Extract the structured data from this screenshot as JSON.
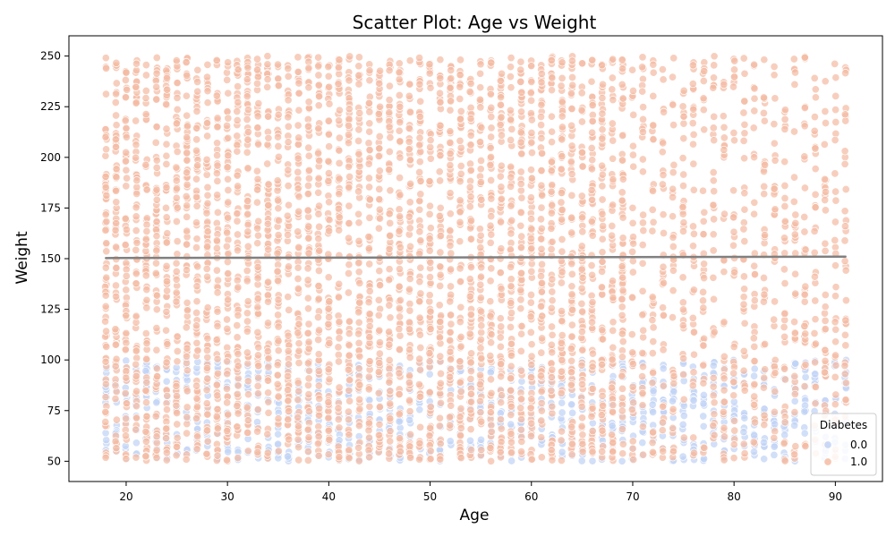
{
  "chart_data": {
    "type": "scatter",
    "title": "Scatter Plot: Age vs Weight",
    "xlabel": "Age",
    "ylabel": "Weight",
    "xlim": [
      14.35,
      94.65
    ],
    "ylim": [
      40,
      260
    ],
    "x_ticks": [
      20,
      30,
      40,
      50,
      60,
      70,
      80,
      90
    ],
    "y_ticks": [
      50,
      75,
      100,
      125,
      150,
      175,
      200,
      225,
      250
    ],
    "grid": false,
    "legend": {
      "title": "Diabetes",
      "placement": "bottom-right",
      "entries": [
        "0.0",
        "1.0"
      ]
    },
    "series": [
      {
        "name": "0.0",
        "color": "#c0d2f5",
        "x_range": [
          18,
          91
        ],
        "y_range": [
          50,
          100
        ],
        "per_age_count": 14
      },
      {
        "name": "1.0",
        "color": "#f4bba3",
        "x_range": [
          18,
          91
        ],
        "y_range": [
          50,
          250
        ],
        "per_age_count_under_70": 70,
        "per_age_count_70_plus": 34
      }
    ],
    "trend_line": {
      "color": "#808080",
      "x": [
        18,
        91
      ],
      "y": [
        150.3,
        151.0
      ]
    }
  }
}
